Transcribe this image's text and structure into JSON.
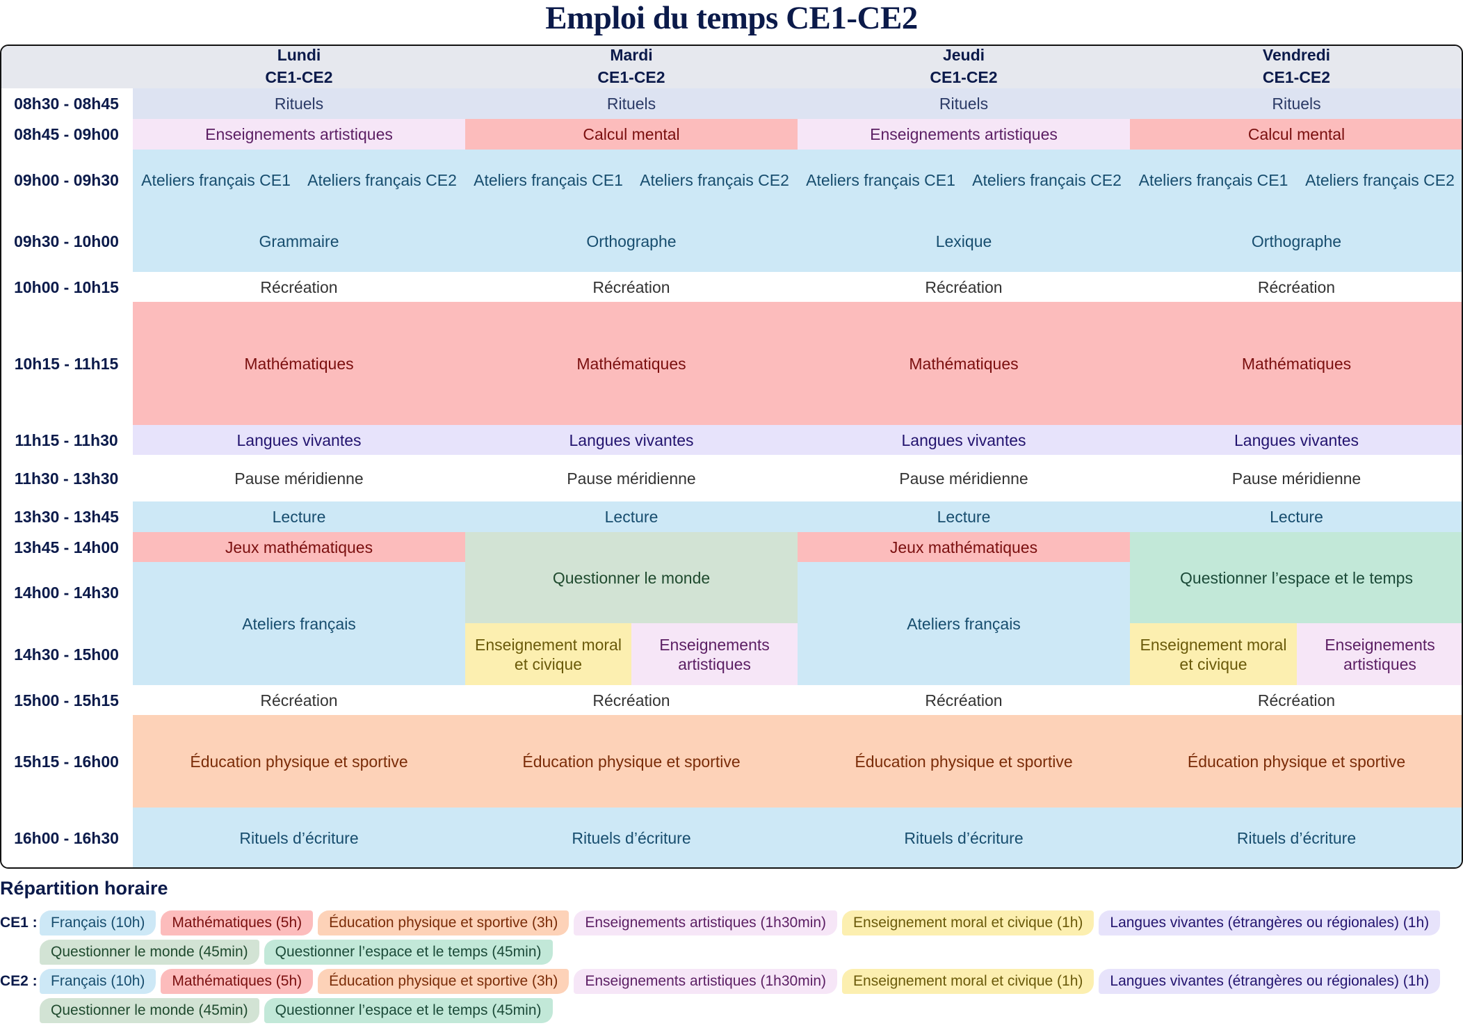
{
  "title": "Emploi du temps CE1-CE2",
  "colors": {
    "rituels": {
      "bg": "#dde3f2",
      "fg": "#2b3a66"
    },
    "arts": {
      "bg": "#f6e6f7",
      "fg": "#5b1e63"
    },
    "maths": {
      "bg": "#fcbcbc",
      "fg": "#7a0f0f"
    },
    "francais": {
      "bg": "#cde8f6",
      "fg": "#174d6e"
    },
    "recre": {
      "bg": "#ffffff",
      "fg": "#333333"
    },
    "langues": {
      "bg": "#e7e3fb",
      "fg": "#22136e"
    },
    "monde": {
      "bg": "#d2e3d4",
      "fg": "#1f4a2e"
    },
    "espace": {
      "bg": "#c2e8d8",
      "fg": "#1b4a38"
    },
    "emc": {
      "bg": "#fcefb0",
      "fg": "#6a5a0a"
    },
    "eps": {
      "bg": "#fdd2b8",
      "fg": "#7a2c08"
    }
  },
  "header": {
    "days": [
      "Lundi",
      "Mardi",
      "Jeudi",
      "Vendredi"
    ],
    "class_label": "CE1-CE2"
  },
  "times": [
    "08h30 - 08h45",
    "08h45 - 09h00",
    "09h00 - 09h30",
    "09h30 - 10h00",
    "10h00 - 10h15",
    "10h15 - 11h15",
    "11h15 - 11h30",
    "11h30 - 13h30",
    "13h30 - 13h45",
    "13h45 - 14h00",
    "14h00 - 14h30",
    "14h30 - 15h00",
    "15h00 - 15h15",
    "15h15 - 16h00",
    "16h00 - 16h30"
  ],
  "row_bounds": [
    127,
    171,
    215,
    303,
    391,
    434,
    611,
    654,
    721,
    765,
    808,
    896,
    985,
    1028,
    1161,
    1248
  ],
  "col_bounds": [
    0,
    191,
    669,
    1147,
    1625,
    2104
  ],
  "cells": [
    {
      "day": 0,
      "r0": 0,
      "r1": 1,
      "half": null,
      "label": "Rituels",
      "cat": "rituels"
    },
    {
      "day": 1,
      "r0": 0,
      "r1": 1,
      "half": null,
      "label": "Rituels",
      "cat": "rituels"
    },
    {
      "day": 2,
      "r0": 0,
      "r1": 1,
      "half": null,
      "label": "Rituels",
      "cat": "rituels"
    },
    {
      "day": 3,
      "r0": 0,
      "r1": 1,
      "half": null,
      "label": "Rituels",
      "cat": "rituels"
    },
    {
      "day": 0,
      "r0": 1,
      "r1": 2,
      "half": null,
      "label": "Enseignements artistiques",
      "cat": "arts"
    },
    {
      "day": 1,
      "r0": 1,
      "r1": 2,
      "half": null,
      "label": "Calcul mental",
      "cat": "maths"
    },
    {
      "day": 2,
      "r0": 1,
      "r1": 2,
      "half": null,
      "label": "Enseignements artistiques",
      "cat": "arts"
    },
    {
      "day": 3,
      "r0": 1,
      "r1": 2,
      "half": null,
      "label": "Calcul mental",
      "cat": "maths"
    },
    {
      "day": 0,
      "r0": 2,
      "r1": 3,
      "half": "L",
      "label": "Ateliers français CE1",
      "cat": "francais"
    },
    {
      "day": 0,
      "r0": 2,
      "r1": 3,
      "half": "R",
      "label": "Ateliers français CE2",
      "cat": "francais"
    },
    {
      "day": 1,
      "r0": 2,
      "r1": 3,
      "half": "L",
      "label": "Ateliers français CE1",
      "cat": "francais"
    },
    {
      "day": 1,
      "r0": 2,
      "r1": 3,
      "half": "R",
      "label": "Ateliers français CE2",
      "cat": "francais"
    },
    {
      "day": 2,
      "r0": 2,
      "r1": 3,
      "half": "L",
      "label": "Ateliers français CE1",
      "cat": "francais"
    },
    {
      "day": 2,
      "r0": 2,
      "r1": 3,
      "half": "R",
      "label": "Ateliers français CE2",
      "cat": "francais"
    },
    {
      "day": 3,
      "r0": 2,
      "r1": 3,
      "half": "L",
      "label": "Ateliers français CE1",
      "cat": "francais"
    },
    {
      "day": 3,
      "r0": 2,
      "r1": 3,
      "half": "R",
      "label": "Ateliers français CE2",
      "cat": "francais"
    },
    {
      "day": 0,
      "r0": 3,
      "r1": 4,
      "half": null,
      "label": "Grammaire",
      "cat": "francais"
    },
    {
      "day": 1,
      "r0": 3,
      "r1": 4,
      "half": null,
      "label": "Orthographe",
      "cat": "francais"
    },
    {
      "day": 2,
      "r0": 3,
      "r1": 4,
      "half": null,
      "label": "Lexique",
      "cat": "francais"
    },
    {
      "day": 3,
      "r0": 3,
      "r1": 4,
      "half": null,
      "label": "Orthographe",
      "cat": "francais"
    },
    {
      "day": 0,
      "r0": 4,
      "r1": 5,
      "half": null,
      "label": "Récréation",
      "cat": "recre"
    },
    {
      "day": 1,
      "r0": 4,
      "r1": 5,
      "half": null,
      "label": "Récréation",
      "cat": "recre"
    },
    {
      "day": 2,
      "r0": 4,
      "r1": 5,
      "half": null,
      "label": "Récréation",
      "cat": "recre"
    },
    {
      "day": 3,
      "r0": 4,
      "r1": 5,
      "half": null,
      "label": "Récréation",
      "cat": "recre"
    },
    {
      "day": 0,
      "r0": 5,
      "r1": 6,
      "half": null,
      "label": "Mathématiques",
      "cat": "maths"
    },
    {
      "day": 1,
      "r0": 5,
      "r1": 6,
      "half": null,
      "label": "Mathématiques",
      "cat": "maths"
    },
    {
      "day": 2,
      "r0": 5,
      "r1": 6,
      "half": null,
      "label": "Mathématiques",
      "cat": "maths"
    },
    {
      "day": 3,
      "r0": 5,
      "r1": 6,
      "half": null,
      "label": "Mathématiques",
      "cat": "maths"
    },
    {
      "day": 0,
      "r0": 6,
      "r1": 7,
      "half": null,
      "label": "Langues vivantes",
      "cat": "langues"
    },
    {
      "day": 1,
      "r0": 6,
      "r1": 7,
      "half": null,
      "label": "Langues vivantes",
      "cat": "langues"
    },
    {
      "day": 2,
      "r0": 6,
      "r1": 7,
      "half": null,
      "label": "Langues vivantes",
      "cat": "langues"
    },
    {
      "day": 3,
      "r0": 6,
      "r1": 7,
      "half": null,
      "label": "Langues vivantes",
      "cat": "langues"
    },
    {
      "day": 0,
      "r0": 7,
      "r1": 8,
      "half": null,
      "label": "Pause méridienne",
      "cat": "recre"
    },
    {
      "day": 1,
      "r0": 7,
      "r1": 8,
      "half": null,
      "label": "Pause méridienne",
      "cat": "recre"
    },
    {
      "day": 2,
      "r0": 7,
      "r1": 8,
      "half": null,
      "label": "Pause méridienne",
      "cat": "recre"
    },
    {
      "day": 3,
      "r0": 7,
      "r1": 8,
      "half": null,
      "label": "Pause méridienne",
      "cat": "recre"
    },
    {
      "day": 0,
      "r0": 8,
      "r1": 9,
      "half": null,
      "label": "Lecture",
      "cat": "francais"
    },
    {
      "day": 1,
      "r0": 8,
      "r1": 9,
      "half": null,
      "label": "Lecture",
      "cat": "francais"
    },
    {
      "day": 2,
      "r0": 8,
      "r1": 9,
      "half": null,
      "label": "Lecture",
      "cat": "francais"
    },
    {
      "day": 3,
      "r0": 8,
      "r1": 9,
      "half": null,
      "label": "Lecture",
      "cat": "francais"
    },
    {
      "day": 0,
      "r0": 9,
      "r1": 10,
      "half": null,
      "label": "Jeux mathématiques",
      "cat": "maths"
    },
    {
      "day": 0,
      "r0": 10,
      "r1": 12,
      "half": null,
      "label": "Ateliers français",
      "cat": "francais"
    },
    {
      "day": 1,
      "r0": 9,
      "r1": 11,
      "half": null,
      "label": "Questionner le monde",
      "cat": "monde"
    },
    {
      "day": 1,
      "r0": 11,
      "r1": 12,
      "half": "L",
      "label": "Enseignement moral et civique",
      "cat": "emc"
    },
    {
      "day": 1,
      "r0": 11,
      "r1": 12,
      "half": "R",
      "label": "Enseignements artistiques",
      "cat": "arts"
    },
    {
      "day": 2,
      "r0": 9,
      "r1": 10,
      "half": null,
      "label": "Jeux mathématiques",
      "cat": "maths"
    },
    {
      "day": 2,
      "r0": 10,
      "r1": 12,
      "half": null,
      "label": "Ateliers français",
      "cat": "francais"
    },
    {
      "day": 3,
      "r0": 9,
      "r1": 11,
      "half": null,
      "label": "Questionner l’espace et le temps",
      "cat": "espace"
    },
    {
      "day": 3,
      "r0": 11,
      "r1": 12,
      "half": "L",
      "label": "Enseignement moral et civique",
      "cat": "emc"
    },
    {
      "day": 3,
      "r0": 11,
      "r1": 12,
      "half": "R",
      "label": "Enseignements artistiques",
      "cat": "arts"
    },
    {
      "day": 0,
      "r0": 12,
      "r1": 13,
      "half": null,
      "label": "Récréation",
      "cat": "recre"
    },
    {
      "day": 1,
      "r0": 12,
      "r1": 13,
      "half": null,
      "label": "Récréation",
      "cat": "recre"
    },
    {
      "day": 2,
      "r0": 12,
      "r1": 13,
      "half": null,
      "label": "Récréation",
      "cat": "recre"
    },
    {
      "day": 3,
      "r0": 12,
      "r1": 13,
      "half": null,
      "label": "Récréation",
      "cat": "recre"
    },
    {
      "day": 0,
      "r0": 13,
      "r1": 14,
      "half": null,
      "label": "Éducation physique et sportive",
      "cat": "eps"
    },
    {
      "day": 1,
      "r0": 13,
      "r1": 14,
      "half": null,
      "label": "Éducation physique et sportive",
      "cat": "eps"
    },
    {
      "day": 2,
      "r0": 13,
      "r1": 14,
      "half": null,
      "label": "Éducation physique et sportive",
      "cat": "eps"
    },
    {
      "day": 3,
      "r0": 13,
      "r1": 14,
      "half": null,
      "label": "Éducation physique et sportive",
      "cat": "eps"
    },
    {
      "day": 0,
      "r0": 14,
      "r1": 15,
      "half": null,
      "label": "Rituels d’écriture",
      "cat": "francais"
    },
    {
      "day": 1,
      "r0": 14,
      "r1": 15,
      "half": null,
      "label": "Rituels d’écriture",
      "cat": "francais"
    },
    {
      "day": 2,
      "r0": 14,
      "r1": 15,
      "half": null,
      "label": "Rituels d’écriture",
      "cat": "francais"
    },
    {
      "day": 3,
      "r0": 14,
      "r1": 15,
      "half": null,
      "label": "Rituels d’écriture",
      "cat": "francais"
    }
  ],
  "legend": {
    "title": "Répartition horaire",
    "groups": [
      {
        "label": "CE1 :",
        "rows": [
          [
            {
              "text": "Français (10h)",
              "cat": "francais"
            },
            {
              "text": "Mathématiques (5h)",
              "cat": "maths"
            },
            {
              "text": "Éducation physique et sportive (3h)",
              "cat": "eps"
            },
            {
              "text": "Enseignements artistiques (1h30min)",
              "cat": "arts"
            },
            {
              "text": "Enseignement moral et civique (1h)",
              "cat": "emc"
            },
            {
              "text": "Langues vivantes (étrangères ou régionales) (1h)",
              "cat": "langues"
            }
          ],
          [
            {
              "text": "Questionner le monde (45min)",
              "cat": "monde"
            },
            {
              "text": "Questionner l’espace et le temps (45min)",
              "cat": "espace"
            }
          ]
        ]
      },
      {
        "label": "CE2 :",
        "rows": [
          [
            {
              "text": "Français (10h)",
              "cat": "francais"
            },
            {
              "text": "Mathématiques (5h)",
              "cat": "maths"
            },
            {
              "text": "Éducation physique et sportive (3h)",
              "cat": "eps"
            },
            {
              "text": "Enseignements artistiques (1h30min)",
              "cat": "arts"
            },
            {
              "text": "Enseignement moral et civique (1h)",
              "cat": "emc"
            },
            {
              "text": "Langues vivantes (étrangères ou régionales) (1h)",
              "cat": "langues"
            }
          ],
          [
            {
              "text": "Questionner le monde (45min)",
              "cat": "monde"
            },
            {
              "text": "Questionner l’espace et le temps (45min)",
              "cat": "espace"
            }
          ]
        ]
      }
    ],
    "row_tops": [
      1309,
      1351,
      1393,
      1435
    ]
  }
}
